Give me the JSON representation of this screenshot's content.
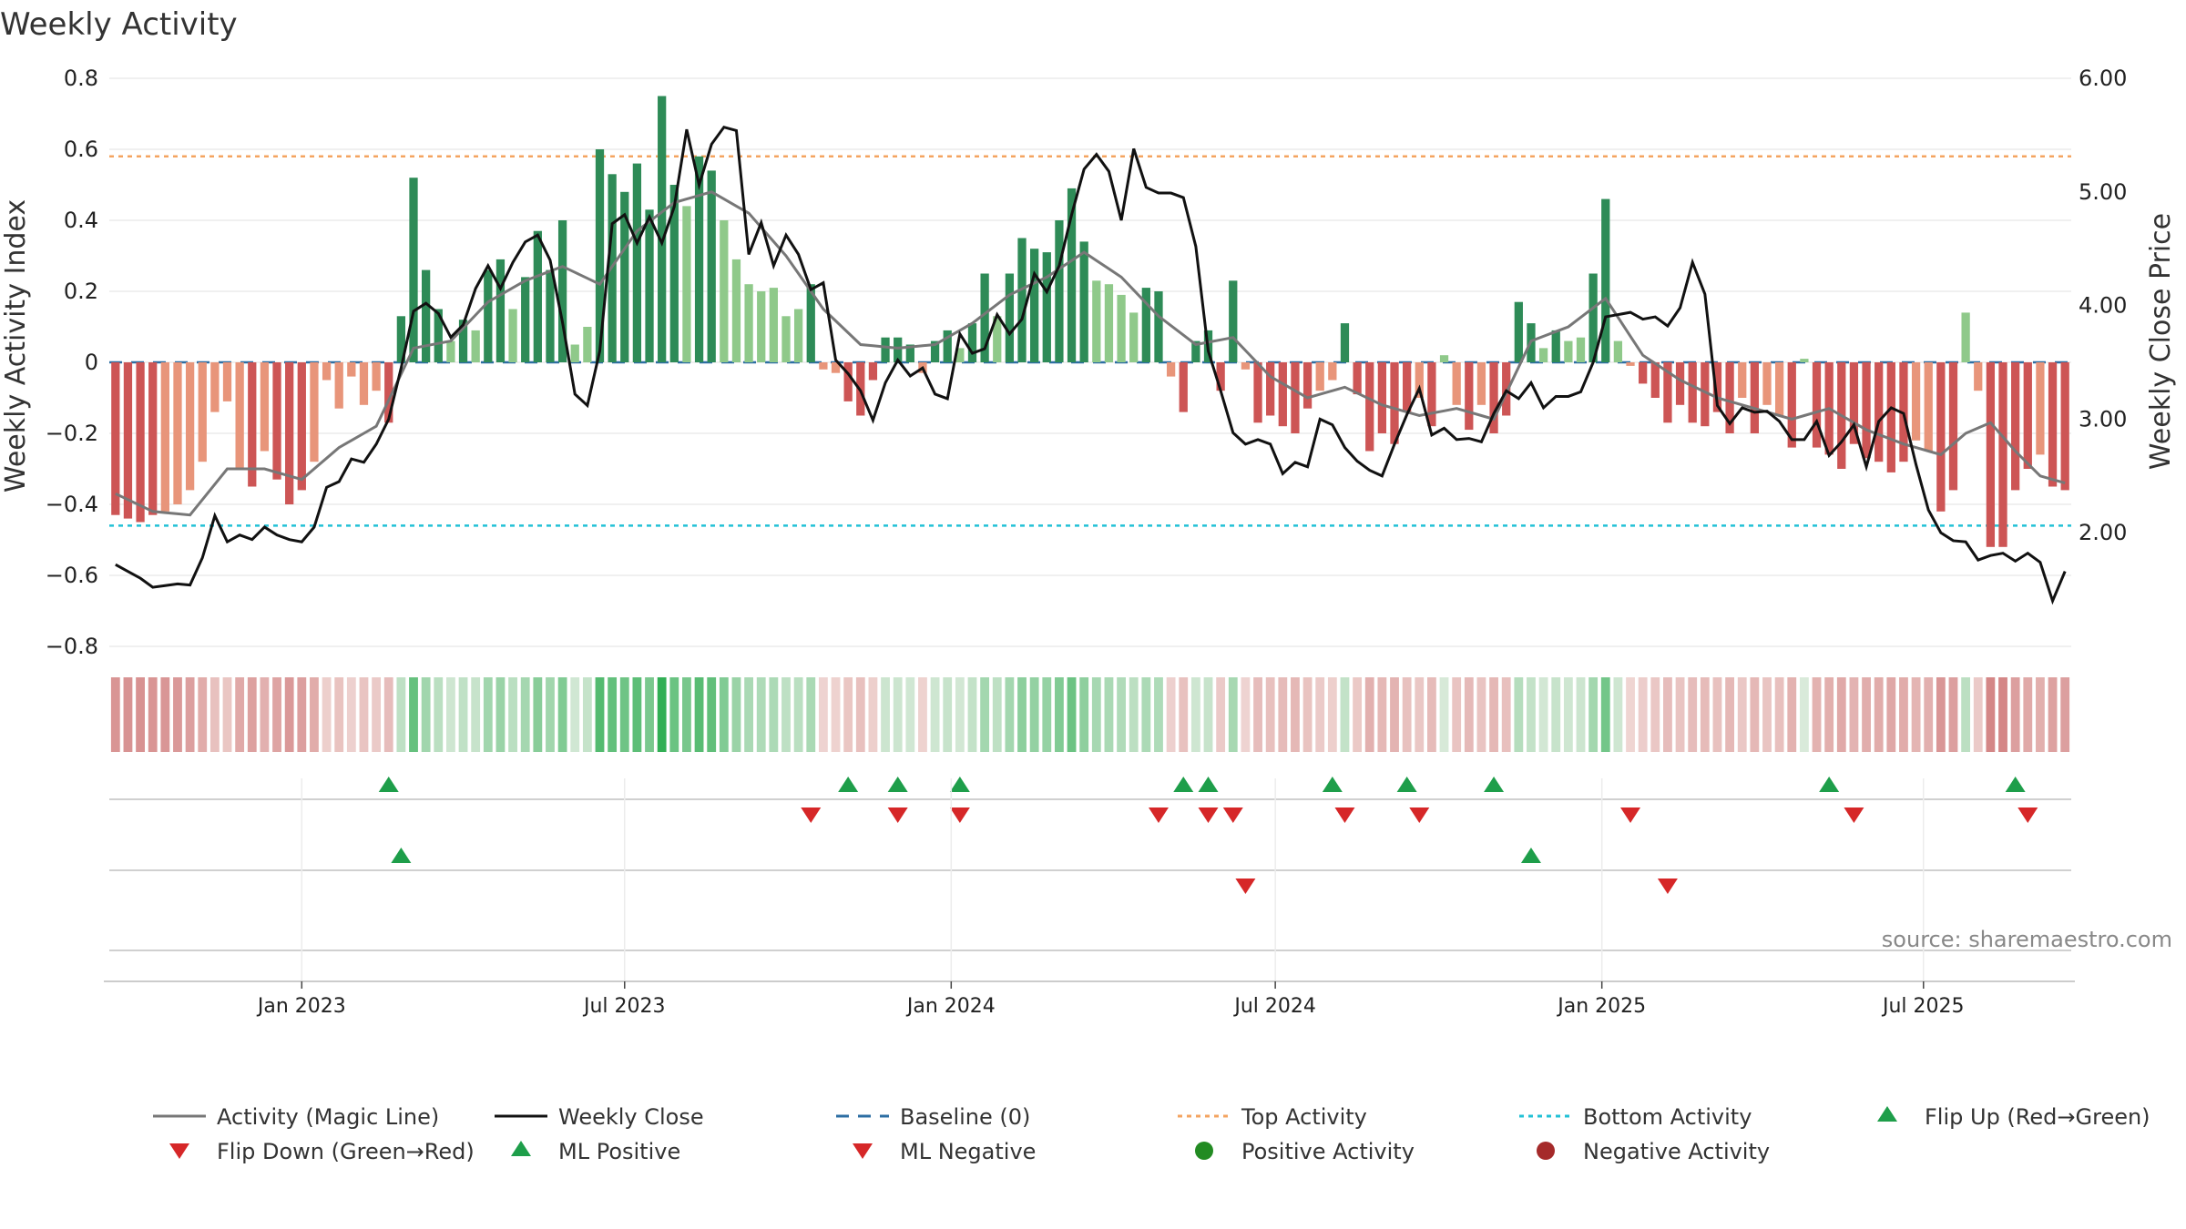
{
  "chart_data": {
    "type": "bar",
    "title": "Weekly Activity",
    "ylabel": "Weekly Activity Index",
    "y2label": "Weekly Close Price",
    "ylim": [
      -0.8,
      0.8
    ],
    "y2lim": [
      1.0,
      6.0
    ],
    "yticks": [
      0.8,
      0.6,
      0.4,
      0.2,
      0,
      -0.2,
      -0.4,
      -0.6,
      -0.8
    ],
    "ytick_labels": [
      "0.8",
      "0.6",
      "0.4",
      "0.2",
      "0",
      "−0.2",
      "−0.4",
      "−0.6",
      "−0.8"
    ],
    "y2ticks": [
      6.0,
      5.0,
      4.0,
      3.0,
      2.0
    ],
    "y2tick_labels": [
      "6.00",
      "5.00",
      "4.00",
      "3.00",
      "2.00"
    ],
    "x_start": "2022-09-26",
    "week_count": 158,
    "xticks": [
      {
        "label": "Jan 2023",
        "week": 15
      },
      {
        "label": "Jul 2023",
        "week": 41
      },
      {
        "label": "Jan 2024",
        "week": 67.3
      },
      {
        "label": "Jul 2024",
        "week": 93.4
      },
      {
        "label": "Jan 2025",
        "week": 119.7
      },
      {
        "label": "Jul 2025",
        "week": 145.6
      }
    ],
    "top_activity": 0.58,
    "bottom_activity": -0.46,
    "baseline": 0,
    "activity_keys": [
      [
        0,
        -0.43
      ],
      [
        1,
        -0.44
      ],
      [
        2,
        -0.45
      ],
      [
        3,
        -0.43
      ],
      [
        4,
        -0.42
      ],
      [
        5,
        -0.4
      ],
      [
        6,
        -0.36
      ],
      [
        7,
        -0.28
      ],
      [
        8,
        -0.14
      ],
      [
        9,
        -0.11
      ],
      [
        10,
        -0.3
      ],
      [
        11,
        -0.35
      ],
      [
        12,
        -0.25
      ],
      [
        13,
        -0.33
      ],
      [
        14,
        -0.4
      ],
      [
        15,
        -0.36
      ],
      [
        16,
        -0.28
      ],
      [
        17,
        -0.05
      ],
      [
        18,
        -0.13
      ],
      [
        19,
        -0.04
      ],
      [
        20,
        -0.12
      ],
      [
        21,
        -0.08
      ],
      [
        22,
        -0.17
      ],
      [
        23,
        0.13
      ],
      [
        24,
        0.52
      ],
      [
        25,
        0.26
      ],
      [
        26,
        0.15
      ],
      [
        27,
        0.06
      ],
      [
        28,
        0.12
      ],
      [
        29,
        0.09
      ],
      [
        30,
        0.26
      ],
      [
        31,
        0.29
      ],
      [
        32,
        0.15
      ],
      [
        33,
        0.24
      ],
      [
        34,
        0.37
      ],
      [
        35,
        0.26
      ],
      [
        36,
        0.4
      ],
      [
        37,
        0.05
      ],
      [
        38,
        0.1
      ],
      [
        39,
        0.6
      ],
      [
        40,
        0.53
      ],
      [
        41,
        0.48
      ],
      [
        42,
        0.56
      ],
      [
        43,
        0.43
      ],
      [
        44,
        0.75
      ],
      [
        45,
        0.5
      ],
      [
        46,
        0.44
      ],
      [
        47,
        0.58
      ],
      [
        48,
        0.54
      ],
      [
        49,
        0.4
      ],
      [
        50,
        0.29
      ],
      [
        51,
        0.22
      ],
      [
        52,
        0.2
      ],
      [
        53,
        0.21
      ],
      [
        54,
        0.13
      ],
      [
        55,
        0.15
      ],
      [
        56,
        0.22
      ],
      [
        57,
        -0.02
      ],
      [
        58,
        -0.03
      ],
      [
        59,
        -0.11
      ],
      [
        60,
        -0.15
      ],
      [
        61,
        -0.05
      ],
      [
        62,
        0.07
      ],
      [
        63,
        0.07
      ],
      [
        64,
        0.05
      ],
      [
        65,
        -0.03
      ],
      [
        66,
        0.06
      ],
      [
        67,
        0.09
      ],
      [
        68,
        0.04
      ],
      [
        69,
        0.11
      ],
      [
        70,
        0.25
      ],
      [
        71,
        0.13
      ],
      [
        72,
        0.25
      ],
      [
        73,
        0.35
      ],
      [
        74,
        0.32
      ],
      [
        75,
        0.31
      ],
      [
        76,
        0.4
      ],
      [
        77,
        0.49
      ],
      [
        78,
        0.34
      ],
      [
        79,
        0.23
      ],
      [
        80,
        0.22
      ],
      [
        81,
        0.19
      ],
      [
        82,
        0.14
      ],
      [
        83,
        0.21
      ],
      [
        84,
        0.2
      ],
      [
        85,
        -0.04
      ],
      [
        86,
        -0.14
      ],
      [
        87,
        0.06
      ],
      [
        88,
        0.09
      ],
      [
        89,
        -0.08
      ],
      [
        90,
        0.23
      ],
      [
        91,
        -0.02
      ],
      [
        92,
        -0.17
      ],
      [
        93,
        -0.15
      ],
      [
        94,
        -0.18
      ],
      [
        95,
        -0.2
      ],
      [
        96,
        -0.13
      ],
      [
        97,
        -0.08
      ],
      [
        98,
        -0.05
      ],
      [
        99,
        0.11
      ],
      [
        100,
        -0.09
      ],
      [
        101,
        -0.25
      ],
      [
        102,
        -0.2
      ],
      [
        103,
        -0.23
      ],
      [
        104,
        -0.14
      ],
      [
        105,
        -0.1
      ],
      [
        106,
        -0.18
      ],
      [
        107,
        0.02
      ],
      [
        108,
        -0.12
      ],
      [
        109,
        -0.19
      ],
      [
        110,
        -0.12
      ],
      [
        111,
        -0.2
      ],
      [
        112,
        -0.15
      ],
      [
        113,
        0.17
      ],
      [
        114,
        0.11
      ],
      [
        115,
        0.04
      ],
      [
        116,
        0.09
      ],
      [
        117,
        0.06
      ],
      [
        118,
        0.07
      ],
      [
        119,
        0.25
      ],
      [
        120,
        0.46
      ],
      [
        121,
        0.06
      ],
      [
        122,
        -0.01
      ],
      [
        123,
        -0.06
      ],
      [
        124,
        -0.1
      ],
      [
        125,
        -0.17
      ],
      [
        126,
        -0.12
      ],
      [
        127,
        -0.17
      ],
      [
        128,
        -0.18
      ],
      [
        129,
        -0.14
      ],
      [
        130,
        -0.2
      ],
      [
        131,
        -0.1
      ],
      [
        132,
        -0.2
      ],
      [
        133,
        -0.12
      ],
      [
        134,
        -0.15
      ],
      [
        135,
        -0.24
      ],
      [
        136,
        0.01
      ],
      [
        137,
        -0.24
      ],
      [
        138,
        -0.26
      ],
      [
        139,
        -0.3
      ],
      [
        140,
        -0.23
      ],
      [
        141,
        -0.27
      ],
      [
        142,
        -0.28
      ],
      [
        143,
        -0.31
      ],
      [
        144,
        -0.28
      ],
      [
        145,
        -0.22
      ],
      [
        146,
        -0.25
      ],
      [
        147,
        -0.42
      ],
      [
        148,
        -0.36
      ],
      [
        149,
        0.14
      ],
      [
        150,
        -0.08
      ],
      [
        151,
        -0.52
      ],
      [
        152,
        -0.52
      ],
      [
        153,
        -0.36
      ],
      [
        154,
        -0.3
      ],
      [
        155,
        -0.26
      ],
      [
        156,
        -0.35
      ],
      [
        157,
        -0.36
      ]
    ],
    "magic_line_keys": [
      [
        0,
        -0.37
      ],
      [
        3,
        -0.42
      ],
      [
        6,
        -0.43
      ],
      [
        9,
        -0.3
      ],
      [
        12,
        -0.3
      ],
      [
        15,
        -0.33
      ],
      [
        18,
        -0.24
      ],
      [
        21,
        -0.18
      ],
      [
        24,
        0.04
      ],
      [
        27,
        0.06
      ],
      [
        30,
        0.17
      ],
      [
        33,
        0.23
      ],
      [
        36,
        0.27
      ],
      [
        39,
        0.22
      ],
      [
        42,
        0.37
      ],
      [
        45,
        0.45
      ],
      [
        48,
        0.48
      ],
      [
        51,
        0.42
      ],
      [
        54,
        0.3
      ],
      [
        57,
        0.15
      ],
      [
        60,
        0.05
      ],
      [
        63,
        0.04
      ],
      [
        66,
        0.05
      ],
      [
        69,
        0.11
      ],
      [
        72,
        0.19
      ],
      [
        75,
        0.24
      ],
      [
        78,
        0.31
      ],
      [
        81,
        0.24
      ],
      [
        84,
        0.13
      ],
      [
        87,
        0.05
      ],
      [
        90,
        0.07
      ],
      [
        93,
        -0.04
      ],
      [
        96,
        -0.1
      ],
      [
        99,
        -0.07
      ],
      [
        102,
        -0.12
      ],
      [
        105,
        -0.15
      ],
      [
        108,
        -0.13
      ],
      [
        111,
        -0.16
      ],
      [
        114,
        0.06
      ],
      [
        117,
        0.1
      ],
      [
        120,
        0.18
      ],
      [
        123,
        0.02
      ],
      [
        126,
        -0.05
      ],
      [
        129,
        -0.1
      ],
      [
        132,
        -0.13
      ],
      [
        135,
        -0.16
      ],
      [
        138,
        -0.13
      ],
      [
        141,
        -0.19
      ],
      [
        144,
        -0.23
      ],
      [
        147,
        -0.26
      ],
      [
        149,
        -0.2
      ],
      [
        151,
        -0.17
      ],
      [
        153,
        -0.25
      ],
      [
        155,
        -0.32
      ],
      [
        157,
        -0.34
      ]
    ],
    "close_keys": [
      [
        0,
        1.72
      ],
      [
        2,
        1.6
      ],
      [
        3,
        1.52
      ],
      [
        5,
        1.55
      ],
      [
        6,
        1.54
      ],
      [
        7,
        1.78
      ],
      [
        8,
        2.15
      ],
      [
        9,
        1.92
      ],
      [
        10,
        1.98
      ],
      [
        11,
        1.94
      ],
      [
        12,
        2.05
      ],
      [
        13,
        1.98
      ],
      [
        14,
        1.94
      ],
      [
        15,
        1.92
      ],
      [
        16,
        2.05
      ],
      [
        17,
        2.4
      ],
      [
        18,
        2.45
      ],
      [
        19,
        2.65
      ],
      [
        20,
        2.62
      ],
      [
        21,
        2.78
      ],
      [
        22,
        3.0
      ],
      [
        23,
        3.45
      ],
      [
        24,
        3.95
      ],
      [
        25,
        4.02
      ],
      [
        26,
        3.93
      ],
      [
        27,
        3.72
      ],
      [
        28,
        3.83
      ],
      [
        29,
        4.15
      ],
      [
        30,
        4.35
      ],
      [
        31,
        4.15
      ],
      [
        32,
        4.38
      ],
      [
        33,
        4.56
      ],
      [
        34,
        4.62
      ],
      [
        35,
        4.4
      ],
      [
        36,
        3.85
      ],
      [
        37,
        3.22
      ],
      [
        38,
        3.12
      ],
      [
        39,
        3.6
      ],
      [
        40,
        4.72
      ],
      [
        41,
        4.8
      ],
      [
        42,
        4.55
      ],
      [
        43,
        4.78
      ],
      [
        44,
        4.55
      ],
      [
        45,
        4.87
      ],
      [
        46,
        5.55
      ],
      [
        47,
        5.06
      ],
      [
        48,
        5.42
      ],
      [
        49,
        5.57
      ],
      [
        50,
        5.54
      ],
      [
        51,
        4.45
      ],
      [
        52,
        4.73
      ],
      [
        53,
        4.35
      ],
      [
        54,
        4.62
      ],
      [
        55,
        4.45
      ],
      [
        56,
        4.14
      ],
      [
        57,
        4.2
      ],
      [
        58,
        3.52
      ],
      [
        59,
        3.4
      ],
      [
        60,
        3.25
      ],
      [
        61,
        2.99
      ],
      [
        62,
        3.32
      ],
      [
        63,
        3.52
      ],
      [
        64,
        3.38
      ],
      [
        65,
        3.45
      ],
      [
        66,
        3.22
      ],
      [
        67,
        3.18
      ],
      [
        68,
        3.75
      ],
      [
        69,
        3.58
      ],
      [
        70,
        3.62
      ],
      [
        71,
        3.92
      ],
      [
        72,
        3.75
      ],
      [
        73,
        3.88
      ],
      [
        74,
        4.28
      ],
      [
        75,
        4.12
      ],
      [
        76,
        4.35
      ],
      [
        77,
        4.8
      ],
      [
        78,
        5.2
      ],
      [
        79,
        5.33
      ],
      [
        80,
        5.18
      ],
      [
        81,
        4.75
      ],
      [
        82,
        5.38
      ],
      [
        83,
        5.04
      ],
      [
        84,
        4.99
      ],
      [
        85,
        4.99
      ],
      [
        86,
        4.95
      ],
      [
        87,
        4.52
      ],
      [
        88,
        3.6
      ],
      [
        89,
        3.25
      ],
      [
        90,
        2.88
      ],
      [
        91,
        2.78
      ],
      [
        92,
        2.82
      ],
      [
        93,
        2.78
      ],
      [
        94,
        2.52
      ],
      [
        95,
        2.62
      ],
      [
        96,
        2.58
      ],
      [
        97,
        3.0
      ],
      [
        98,
        2.95
      ],
      [
        99,
        2.75
      ],
      [
        100,
        2.63
      ],
      [
        101,
        2.55
      ],
      [
        102,
        2.5
      ],
      [
        103,
        2.78
      ],
      [
        104,
        3.04
      ],
      [
        105,
        3.27
      ],
      [
        106,
        2.86
      ],
      [
        107,
        2.92
      ],
      [
        108,
        2.82
      ],
      [
        109,
        2.83
      ],
      [
        110,
        2.8
      ],
      [
        111,
        3.05
      ],
      [
        112,
        3.25
      ],
      [
        113,
        3.18
      ],
      [
        114,
        3.32
      ],
      [
        115,
        3.1
      ],
      [
        116,
        3.2
      ],
      [
        117,
        3.2
      ],
      [
        118,
        3.24
      ],
      [
        119,
        3.5
      ],
      [
        120,
        3.9
      ],
      [
        121,
        3.92
      ],
      [
        122,
        3.94
      ],
      [
        123,
        3.88
      ],
      [
        124,
        3.9
      ],
      [
        125,
        3.82
      ],
      [
        126,
        3.98
      ],
      [
        127,
        4.38
      ],
      [
        128,
        4.1
      ],
      [
        129,
        3.12
      ],
      [
        130,
        2.96
      ],
      [
        131,
        3.1
      ],
      [
        132,
        3.06
      ],
      [
        133,
        3.07
      ],
      [
        134,
        2.98
      ],
      [
        135,
        2.82
      ],
      [
        136,
        2.82
      ],
      [
        137,
        2.98
      ],
      [
        138,
        2.68
      ],
      [
        139,
        2.8
      ],
      [
        140,
        2.95
      ],
      [
        141,
        2.58
      ],
      [
        142,
        2.98
      ],
      [
        143,
        3.1
      ],
      [
        144,
        3.05
      ],
      [
        145,
        2.6
      ],
      [
        146,
        2.2
      ],
      [
        147,
        2.0
      ],
      [
        148,
        1.93
      ],
      [
        149,
        1.92
      ],
      [
        150,
        1.76
      ],
      [
        151,
        1.8
      ],
      [
        152,
        1.82
      ],
      [
        153,
        1.75
      ],
      [
        154,
        1.82
      ],
      [
        155,
        1.74
      ],
      [
        156,
        1.4
      ],
      [
        157,
        1.66
      ]
    ],
    "heat_strip": "per-week activity shading",
    "flip_up_weeks": [
      22,
      59,
      63,
      68,
      86,
      88,
      98,
      104,
      111,
      138,
      153
    ],
    "flip_down_weeks": [
      56,
      63,
      68,
      84,
      88,
      90,
      99,
      105,
      122,
      140,
      154
    ],
    "ml_positive_weeks": [
      23,
      114
    ],
    "ml_negative_weeks": [
      91,
      125
    ],
    "positive_activity_weeks": [],
    "negative_activity_weeks": [],
    "legend": [
      {
        "key": "magic",
        "label": "Activity (Magic Line)"
      },
      {
        "key": "close",
        "label": "Weekly Close"
      },
      {
        "key": "baseline",
        "label": "Baseline (0)"
      },
      {
        "key": "top",
        "label": "Top Activity"
      },
      {
        "key": "bottom",
        "label": "Bottom Activity"
      },
      {
        "key": "flipup",
        "label": "Flip Up (Red→Green)"
      },
      {
        "key": "flipdown",
        "label": "Flip Down (Green→Red)"
      },
      {
        "key": "mlpos",
        "label": "ML Positive"
      },
      {
        "key": "mlneg",
        "label": "ML Negative"
      },
      {
        "key": "posact",
        "label": "Positive Activity"
      },
      {
        "key": "negact",
        "label": "Negative Activity"
      }
    ],
    "source": "source: sharemaestro.com"
  },
  "colors": {
    "pos_dark": "#2e8b57",
    "pos_light": "#8fc98a",
    "neg_dark": "#cd5555",
    "neg_light": "#e8957a",
    "magic": "#777777",
    "close": "#111111",
    "baseline": "#2d6ea3",
    "top": "#f4a460",
    "bottom": "#22c1d6",
    "up_marker": "#1e9e4a",
    "down_marker": "#d62728",
    "pos_dot": "#228b22",
    "neg_dot": "#a52a2a"
  }
}
